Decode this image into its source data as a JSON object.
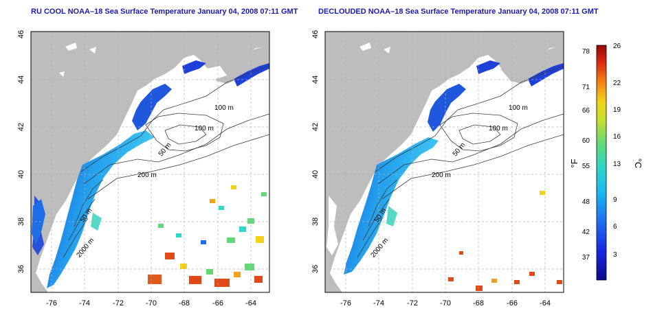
{
  "panels": [
    {
      "title": "RU COOL NOAA–18 Sea Surface Temperature January 04, 2008 07:11 GMT"
    },
    {
      "title": "DECLOUDED NOAA–18 Sea Surface Temperature January 04, 2008 07:11 GMT"
    }
  ],
  "axes": {
    "x_ticks": [
      "-76",
      "-74",
      "-72",
      "-70",
      "-68",
      "-66",
      "-64"
    ],
    "y_ticks": [
      "36",
      "38",
      "40",
      "42",
      "44",
      "46"
    ]
  },
  "contour_labels": [
    "100 m",
    "100 m",
    "50 m",
    "200 m",
    "50 m",
    "2000 m"
  ],
  "colorbar": {
    "f_label": "°F",
    "c_label": "°C",
    "f_ticks": [
      "78",
      "71",
      "66",
      "60",
      "55",
      "48",
      "42",
      "37"
    ],
    "c_ticks": [
      "26",
      "22",
      "19",
      "16",
      "13",
      "9",
      "6",
      "3"
    ]
  },
  "colors": {
    "land": "#bdbdbd",
    "ocean": "#ffffff",
    "title": "#1a1ab0",
    "cold_water": "#1e5adc",
    "shelf_water": "#22a8ee",
    "warm_patch": "#e04a18"
  }
}
